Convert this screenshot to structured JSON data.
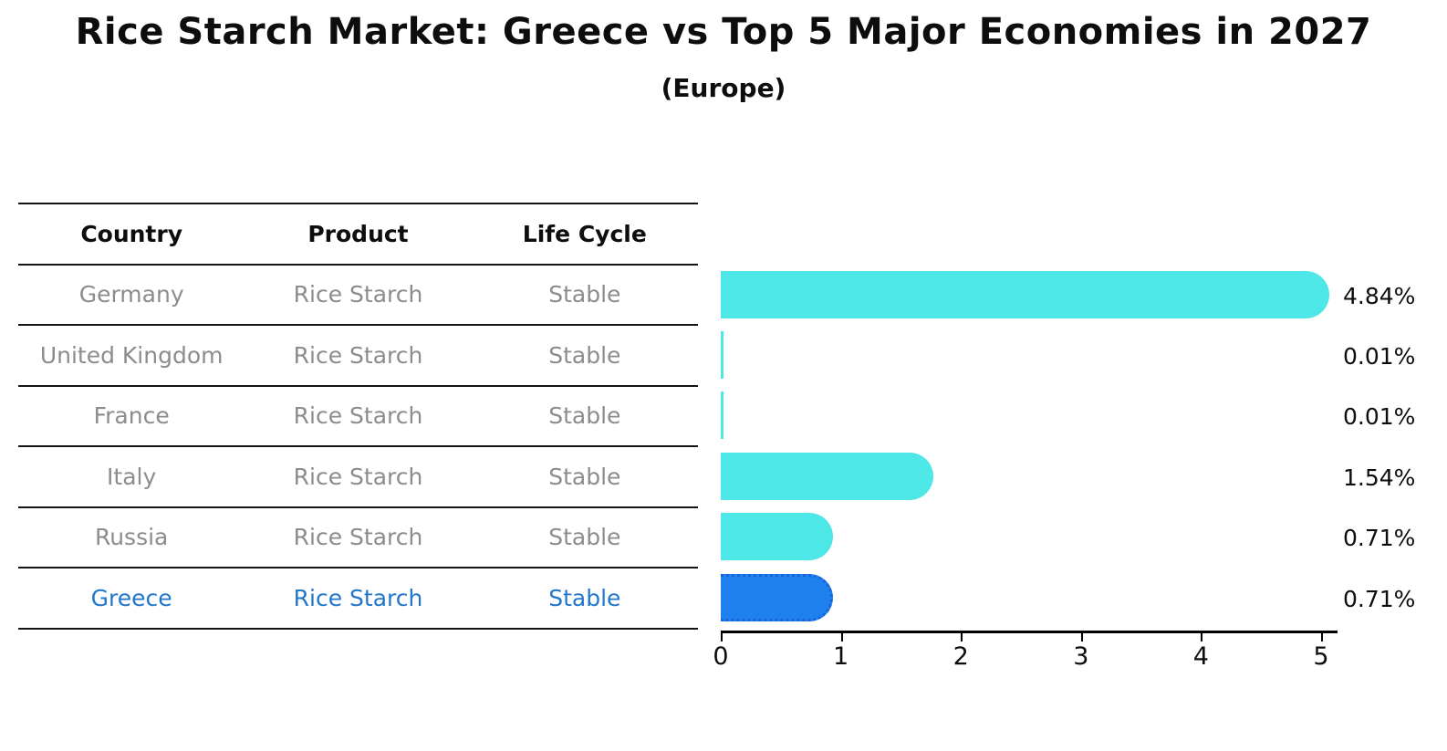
{
  "title": "Rice Starch Market: Greece vs Top 5 Major Economies in 2027",
  "subtitle": "(Europe)",
  "table": {
    "headers": [
      "Country",
      "Product",
      "Life Cycle"
    ],
    "rows": [
      {
        "country": "Germany",
        "product": "Rice Starch",
        "life_cycle": "Stable",
        "highlight": false
      },
      {
        "country": "United Kingdom",
        "product": "Rice Starch",
        "life_cycle": "Stable",
        "highlight": false
      },
      {
        "country": "France",
        "product": "Rice Starch",
        "life_cycle": "Stable",
        "highlight": false
      },
      {
        "country": "Italy",
        "product": "Rice Starch",
        "life_cycle": "Stable",
        "highlight": false
      },
      {
        "country": "Russia",
        "product": "Rice Starch",
        "life_cycle": "Stable",
        "highlight": false
      },
      {
        "country": "Greece",
        "product": "Rice Starch",
        "life_cycle": "Stable",
        "highlight": true
      }
    ]
  },
  "chart_data": {
    "type": "bar",
    "orientation": "horizontal",
    "title": "Rice Starch Market: Greece vs Top 5 Major Economies in 2027",
    "subtitle": "(Europe)",
    "categories": [
      "Germany",
      "United Kingdom",
      "France",
      "Italy",
      "Russia",
      "Greece"
    ],
    "values": [
      4.84,
      0.01,
      0.01,
      1.54,
      0.71,
      0.71
    ],
    "value_labels": [
      "4.84%",
      "0.01%",
      "0.01%",
      "1.54%",
      "0.71%",
      "0.71%"
    ],
    "x_ticks": [
      "0",
      "1",
      "2",
      "3",
      "4",
      "5"
    ],
    "xlim": [
      0,
      5
    ],
    "grid": false,
    "legend": "none",
    "highlight_index": 5
  },
  "colors": {
    "bar": "#4DE7E8",
    "highlight_bar": "#1F80F0",
    "highlight_border": "#1565D8",
    "highlight_text": "#2277CC",
    "muted_text": "#8C8C8C",
    "text": "#0D0D0D",
    "line": "#141414",
    "background": "#FFFFFF"
  }
}
